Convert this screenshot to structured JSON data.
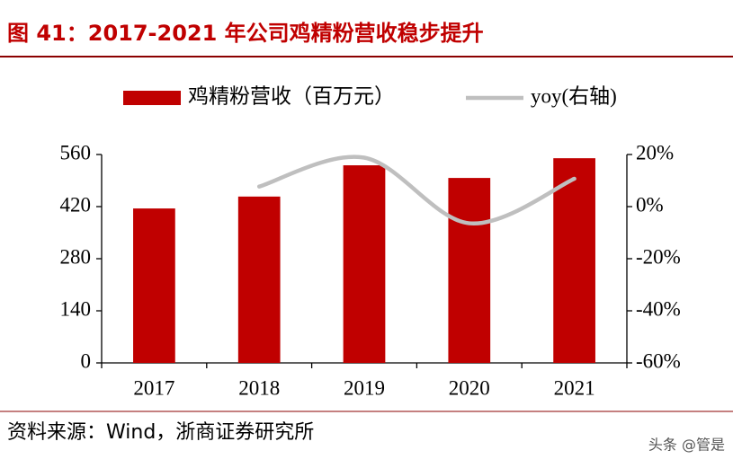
{
  "title": "图 41：2017-2021 年公司鸡精粉营收稳步提升",
  "chart_data": {
    "type": "bar",
    "categories": [
      "2017",
      "2018",
      "2019",
      "2020",
      "2021"
    ],
    "series": [
      {
        "name": "鸡精粉营收（百万元）",
        "type": "bar",
        "color": "#c00000",
        "values": [
          415,
          447,
          531,
          497,
          550
        ]
      },
      {
        "name": "yoy(右轴)",
        "type": "line",
        "axis": "y2",
        "color": "#bfbfbf",
        "values": [
          null,
          7.7,
          18.8,
          -6.4,
          10.7
        ]
      }
    ],
    "ylim": [
      0,
      560
    ],
    "yticks": [
      0,
      140,
      280,
      420,
      560
    ],
    "y2lim": [
      -60,
      20
    ],
    "y2ticks": [
      {
        "value": -60,
        "label": "-60%"
      },
      {
        "value": -40,
        "label": "-40%"
      },
      {
        "value": -20,
        "label": "-20%"
      },
      {
        "value": 0,
        "label": "0%"
      },
      {
        "value": 20,
        "label": "20%"
      }
    ],
    "legend": "top",
    "grid": false
  },
  "source": "资料来源：Wind，浙商证券研究所",
  "watermark": "头条 @管是"
}
